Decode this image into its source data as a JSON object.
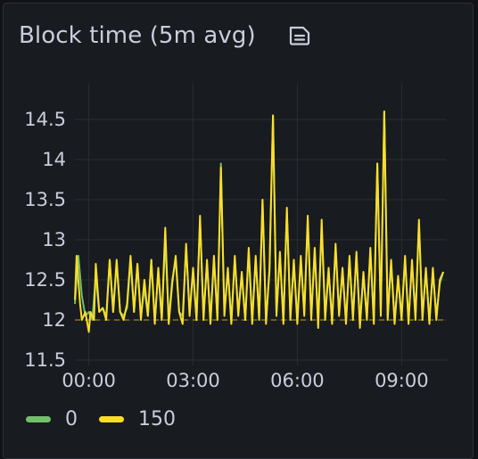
{
  "panel": {
    "title": "Block time (5m avg)",
    "icon": "document-icon"
  },
  "chart_data": {
    "type": "line",
    "title": "Block time (5m avg)",
    "xlabel": "",
    "ylabel": "",
    "x_ticks": [
      "00:00",
      "03:00",
      "06:00",
      "09:00"
    ],
    "y_ticks": [
      11.5,
      12,
      12.5,
      13,
      13.5,
      14,
      14.5
    ],
    "ylim": [
      11.5,
      14.5
    ],
    "xlim_hours": [
      -0.4,
      10.3
    ],
    "grid": true,
    "legend_position": "bottom-left",
    "threshold": 12.0,
    "series": [
      {
        "name": "0",
        "color": "#73bf69",
        "points": [
          [
            -0.4,
            12.2
          ],
          [
            -0.3,
            12.8
          ],
          [
            -0.2,
            12.3
          ],
          [
            -0.1,
            12.05
          ],
          [
            0.0,
            12.1
          ],
          [
            0.1,
            12.0
          ],
          [
            0.2,
            12.55
          ],
          [
            0.3,
            12.1
          ],
          [
            0.4,
            12.15
          ],
          [
            0.5,
            12.05
          ],
          [
            0.6,
            12.75
          ],
          [
            0.7,
            12.1
          ],
          [
            0.8,
            12.7
          ],
          [
            0.9,
            12.1
          ],
          [
            1.0,
            12.05
          ],
          [
            1.1,
            12.15
          ],
          [
            1.2,
            12.75
          ],
          [
            1.3,
            12.1
          ],
          [
            1.4,
            12.7
          ],
          [
            1.5,
            12.05
          ],
          [
            1.6,
            12.4
          ],
          [
            1.7,
            12.05
          ],
          [
            1.8,
            12.75
          ],
          [
            1.9,
            12.0
          ],
          [
            2.0,
            12.6
          ],
          [
            2.1,
            12.0
          ],
          [
            2.2,
            13.0
          ],
          [
            2.3,
            12.0
          ],
          [
            2.4,
            12.5
          ],
          [
            2.5,
            12.75
          ],
          [
            2.6,
            12.1
          ],
          [
            2.7,
            12.05
          ],
          [
            2.8,
            12.9
          ],
          [
            2.9,
            12.1
          ],
          [
            3.0,
            12.6
          ],
          [
            3.1,
            12.0
          ],
          [
            3.2,
            13.25
          ],
          [
            3.3,
            12.05
          ],
          [
            3.4,
            12.7
          ],
          [
            3.5,
            12.0
          ],
          [
            3.6,
            12.75
          ],
          [
            3.7,
            12.05
          ],
          [
            3.8,
            13.95
          ],
          [
            3.9,
            12.1
          ],
          [
            4.0,
            12.6
          ],
          [
            4.1,
            12.0
          ],
          [
            4.2,
            12.75
          ],
          [
            4.3,
            12.1
          ],
          [
            4.4,
            12.55
          ],
          [
            4.5,
            12.0
          ],
          [
            4.6,
            12.85
          ],
          [
            4.7,
            12.0
          ],
          [
            4.8,
            12.75
          ],
          [
            4.9,
            12.05
          ],
          [
            5.0,
            13.5
          ],
          [
            5.1,
            12.0
          ],
          [
            5.2,
            12.6
          ],
          [
            5.3,
            14.55
          ],
          [
            5.4,
            12.1
          ],
          [
            5.5,
            12.8
          ],
          [
            5.6,
            12.0
          ],
          [
            5.7,
            13.35
          ],
          [
            5.8,
            12.05
          ],
          [
            5.9,
            12.7
          ],
          [
            6.0,
            12.0
          ],
          [
            6.1,
            12.75
          ],
          [
            6.2,
            12.1
          ],
          [
            6.3,
            13.25
          ],
          [
            6.4,
            12.05
          ],
          [
            6.5,
            12.85
          ],
          [
            6.6,
            12.0
          ],
          [
            6.7,
            13.15
          ],
          [
            6.8,
            12.05
          ],
          [
            6.9,
            12.6
          ],
          [
            7.0,
            12.0
          ],
          [
            7.1,
            12.9
          ],
          [
            7.2,
            12.1
          ],
          [
            7.3,
            12.6
          ],
          [
            7.4,
            12.0
          ],
          [
            7.5,
            12.75
          ],
          [
            7.6,
            12.05
          ],
          [
            7.7,
            12.8
          ],
          [
            7.8,
            12.0
          ],
          [
            7.9,
            12.55
          ],
          [
            8.0,
            12.05
          ],
          [
            8.1,
            12.85
          ],
          [
            8.2,
            12.0
          ],
          [
            8.3,
            13.95
          ],
          [
            8.4,
            12.1
          ],
          [
            8.5,
            14.6
          ],
          [
            8.6,
            12.05
          ],
          [
            8.7,
            12.7
          ],
          [
            8.8,
            12.0
          ],
          [
            8.9,
            12.5
          ],
          [
            9.0,
            12.05
          ],
          [
            9.1,
            12.75
          ],
          [
            9.2,
            12.0
          ],
          [
            9.3,
            12.7
          ],
          [
            9.4,
            12.05
          ],
          [
            9.5,
            13.2
          ],
          [
            9.6,
            12.05
          ],
          [
            9.7,
            12.6
          ],
          [
            9.8,
            12.0
          ],
          [
            9.9,
            12.6
          ],
          [
            10.0,
            12.05
          ],
          [
            10.1,
            12.45
          ],
          [
            10.2,
            12.6
          ]
        ]
      },
      {
        "name": "150",
        "color": "#fade2a",
        "points": [
          [
            -0.4,
            12.25
          ],
          [
            -0.35,
            12.8
          ],
          [
            -0.25,
            12.2
          ],
          [
            -0.2,
            12.0
          ],
          [
            -0.1,
            12.1
          ],
          [
            0.0,
            11.85
          ],
          [
            0.05,
            12.1
          ],
          [
            0.15,
            12.0
          ],
          [
            0.2,
            12.7
          ],
          [
            0.3,
            12.1
          ],
          [
            0.4,
            12.15
          ],
          [
            0.5,
            12.0
          ],
          [
            0.6,
            12.75
          ],
          [
            0.7,
            12.1
          ],
          [
            0.8,
            12.75
          ],
          [
            0.9,
            12.1
          ],
          [
            1.0,
            12.0
          ],
          [
            1.1,
            12.2
          ],
          [
            1.2,
            12.8
          ],
          [
            1.3,
            12.1
          ],
          [
            1.4,
            12.7
          ],
          [
            1.5,
            12.0
          ],
          [
            1.6,
            12.5
          ],
          [
            1.7,
            12.05
          ],
          [
            1.8,
            12.75
          ],
          [
            1.9,
            11.95
          ],
          [
            2.0,
            12.65
          ],
          [
            2.1,
            12.0
          ],
          [
            2.2,
            13.15
          ],
          [
            2.3,
            11.95
          ],
          [
            2.4,
            12.45
          ],
          [
            2.5,
            12.8
          ],
          [
            2.6,
            12.1
          ],
          [
            2.7,
            11.95
          ],
          [
            2.8,
            12.95
          ],
          [
            2.9,
            12.05
          ],
          [
            3.0,
            12.65
          ],
          [
            3.1,
            12.0
          ],
          [
            3.2,
            13.3
          ],
          [
            3.3,
            12.0
          ],
          [
            3.4,
            12.75
          ],
          [
            3.5,
            11.95
          ],
          [
            3.6,
            12.8
          ],
          [
            3.7,
            12.0
          ],
          [
            3.8,
            13.9
          ],
          [
            3.9,
            12.05
          ],
          [
            4.0,
            12.65
          ],
          [
            4.1,
            11.95
          ],
          [
            4.2,
            12.8
          ],
          [
            4.3,
            12.05
          ],
          [
            4.4,
            12.6
          ],
          [
            4.5,
            12.0
          ],
          [
            4.6,
            12.9
          ],
          [
            4.7,
            11.95
          ],
          [
            4.8,
            12.8
          ],
          [
            4.9,
            12.0
          ],
          [
            5.0,
            13.5
          ],
          [
            5.1,
            11.95
          ],
          [
            5.2,
            12.65
          ],
          [
            5.3,
            14.55
          ],
          [
            5.4,
            12.05
          ],
          [
            5.5,
            12.85
          ],
          [
            5.6,
            11.95
          ],
          [
            5.7,
            13.4
          ],
          [
            5.8,
            12.0
          ],
          [
            5.9,
            12.75
          ],
          [
            6.0,
            11.95
          ],
          [
            6.1,
            12.8
          ],
          [
            6.2,
            12.05
          ],
          [
            6.3,
            13.3
          ],
          [
            6.4,
            12.0
          ],
          [
            6.5,
            12.9
          ],
          [
            6.6,
            11.9
          ],
          [
            6.7,
            13.25
          ],
          [
            6.8,
            12.0
          ],
          [
            6.9,
            12.65
          ],
          [
            7.0,
            11.95
          ],
          [
            7.1,
            12.95
          ],
          [
            7.2,
            12.05
          ],
          [
            7.3,
            12.65
          ],
          [
            7.4,
            11.95
          ],
          [
            7.5,
            12.8
          ],
          [
            7.6,
            12.0
          ],
          [
            7.7,
            12.85
          ],
          [
            7.8,
            11.9
          ],
          [
            7.9,
            12.6
          ],
          [
            8.0,
            12.0
          ],
          [
            8.1,
            12.9
          ],
          [
            8.2,
            11.95
          ],
          [
            8.3,
            13.95
          ],
          [
            8.4,
            12.05
          ],
          [
            8.5,
            14.6
          ],
          [
            8.6,
            12.0
          ],
          [
            8.7,
            12.75
          ],
          [
            8.8,
            11.95
          ],
          [
            8.9,
            12.55
          ],
          [
            9.0,
            12.0
          ],
          [
            9.1,
            12.8
          ],
          [
            9.2,
            11.95
          ],
          [
            9.3,
            12.75
          ],
          [
            9.4,
            12.0
          ],
          [
            9.5,
            13.25
          ],
          [
            9.6,
            12.0
          ],
          [
            9.7,
            12.65
          ],
          [
            9.8,
            11.95
          ],
          [
            9.9,
            12.65
          ],
          [
            10.0,
            12.0
          ],
          [
            10.1,
            12.5
          ],
          [
            10.2,
            12.6
          ]
        ]
      }
    ]
  }
}
